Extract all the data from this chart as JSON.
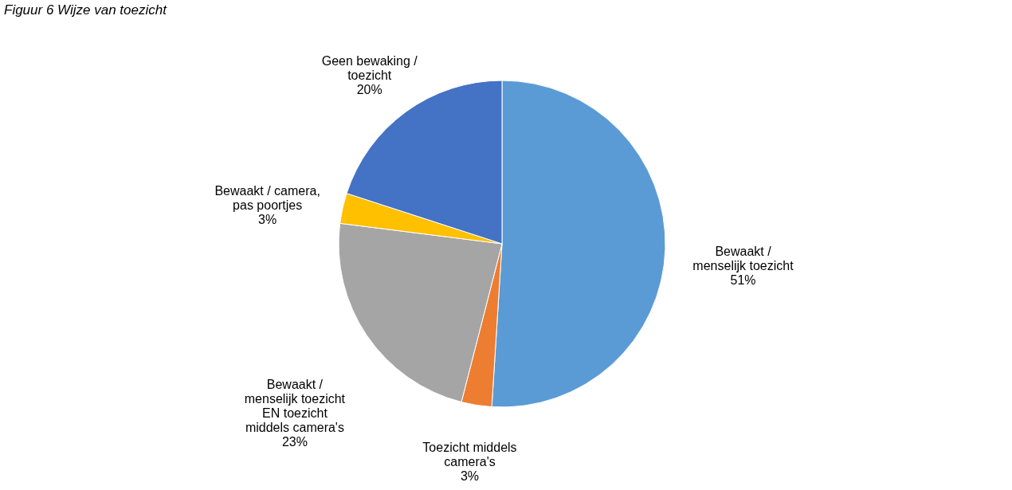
{
  "chart_data": {
    "type": "pie",
    "title": "Figuur 6 Wijze van toezicht",
    "categories": [
      "Bewaakt / menselijk toezicht",
      "Toezicht middels camera's",
      "Bewaakt / menselijk toezicht EN toezicht middels camera's",
      "Bewaakt / camera, pas poortjes",
      "Geen bewaking / toezicht"
    ],
    "values": [
      51,
      3,
      23,
      3,
      20
    ],
    "value_labels": [
      "51%",
      "3%",
      "23%",
      "3%",
      "20%"
    ],
    "colors": [
      "#5b9bd5",
      "#ed7d31",
      "#a5a5a5",
      "#ffc000",
      "#4472c4"
    ],
    "legend": false
  }
}
